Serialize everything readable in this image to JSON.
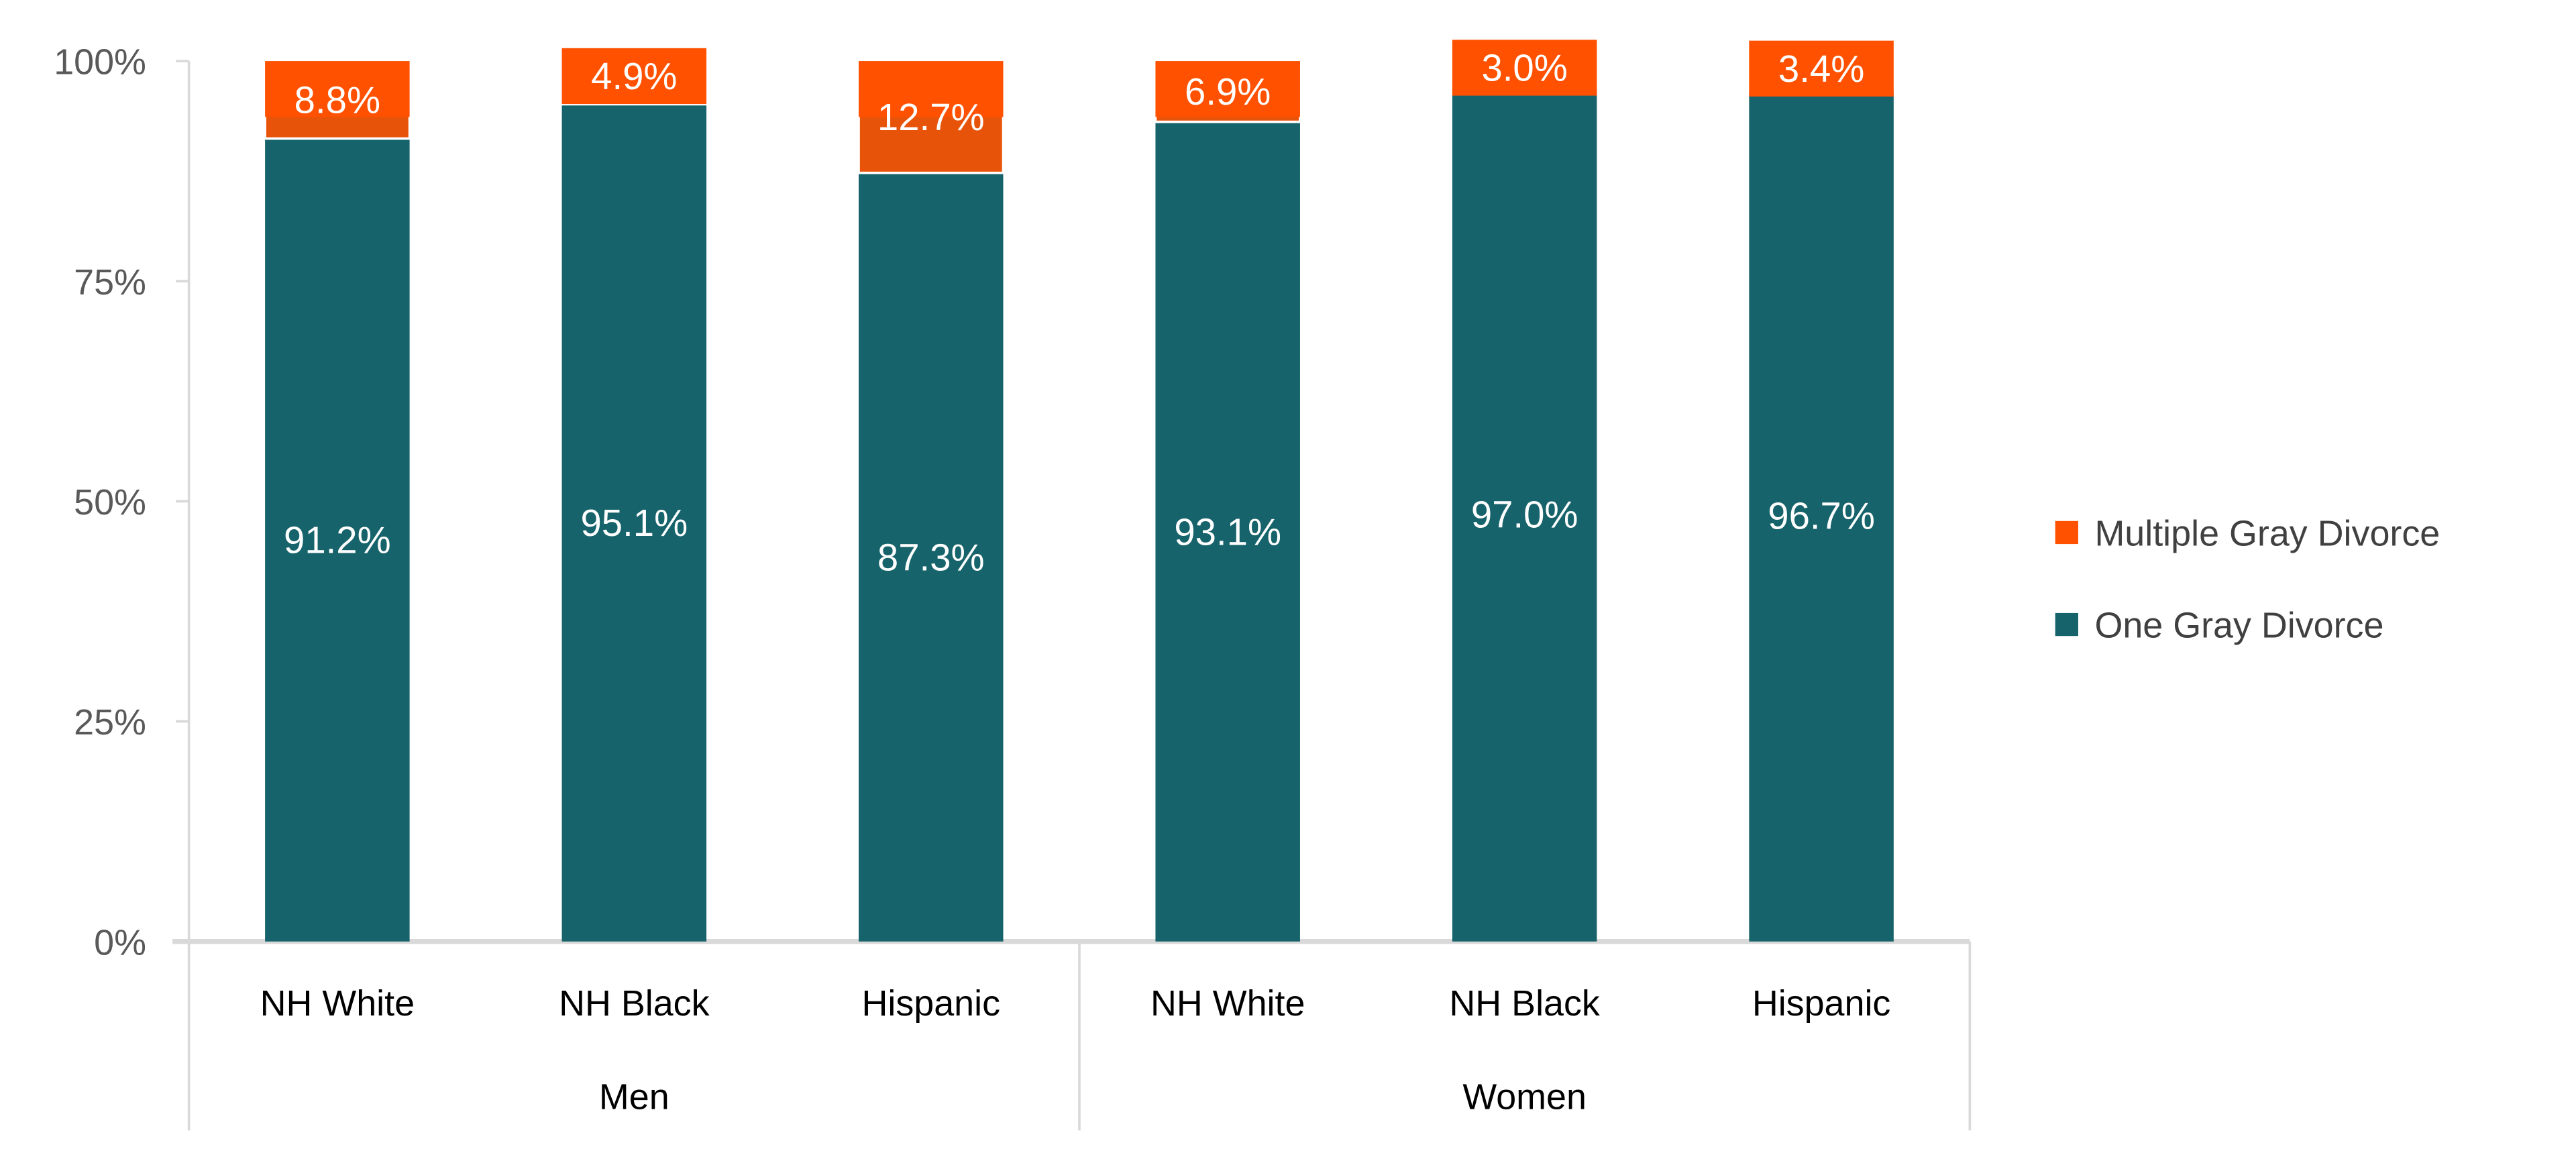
{
  "chart_data": {
    "type": "bar",
    "stacked": true,
    "title": "",
    "xlabel": "",
    "ylabel": "",
    "ylim": [
      0,
      100
    ],
    "yticks": [
      "0%",
      "25%",
      "50%",
      "75%",
      "100%"
    ],
    "ytick_values": [
      0,
      25,
      50,
      75,
      100
    ],
    "grid": false,
    "legend_position": "right",
    "groups": [
      {
        "label": "Men",
        "categories": [
          "NH White",
          "NH Black",
          "Hispanic"
        ]
      },
      {
        "label": "Women",
        "categories": [
          "NH White",
          "NH Black",
          "Hispanic"
        ]
      }
    ],
    "categories": [
      "NH White",
      "NH Black",
      "Hispanic",
      "NH White",
      "NH Black",
      "Hispanic"
    ],
    "series": [
      {
        "name": "One Gray Divorce",
        "color": "#17636B",
        "values": [
          91.2,
          95.1,
          87.3,
          93.1,
          97.0,
          96.7
        ],
        "labels": [
          "91.2%",
          "95.1%",
          "87.3%",
          "93.1%",
          "97.0%",
          "96.7%"
        ]
      },
      {
        "name": "Multiple Gray Divorce",
        "color": "#FF5100",
        "values": [
          8.8,
          4.9,
          12.7,
          6.9,
          3.0,
          3.4
        ],
        "labels": [
          "8.8%",
          "4.9%",
          "12.7%",
          "6.9%",
          "3.0%",
          "3.4%"
        ]
      }
    ],
    "legend": [
      "Multiple Gray Divorce",
      "One Gray Divorce"
    ]
  }
}
